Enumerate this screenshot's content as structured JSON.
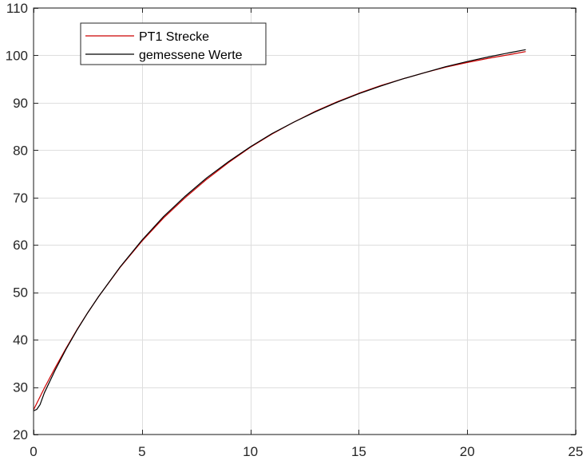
{
  "chart_data": {
    "type": "line",
    "title": "",
    "xlabel": "",
    "ylabel": "",
    "xlim": [
      0,
      25
    ],
    "ylim": [
      20,
      110
    ],
    "xticks": [
      0,
      5,
      10,
      15,
      20,
      25
    ],
    "yticks": [
      20,
      30,
      40,
      50,
      60,
      70,
      80,
      90,
      100,
      110
    ],
    "grid": true,
    "legend_position": "top-left",
    "series": [
      {
        "name": "PT1 Strecke",
        "color": "#cc0000",
        "x": [
          0,
          0.5,
          1,
          1.5,
          2,
          2.5,
          3,
          4,
          5,
          6,
          7,
          8,
          9,
          10,
          11,
          12,
          13,
          14,
          15,
          16,
          17,
          18,
          19,
          20,
          21,
          22,
          22.7
        ],
        "y": [
          25.2,
          29.8,
          34.1,
          38.2,
          42.1,
          45.7,
          49.1,
          55.3,
          60.8,
          65.7,
          70.0,
          73.9,
          77.4,
          80.6,
          83.4,
          85.9,
          88.2,
          90.2,
          92.0,
          93.6,
          95.0,
          96.3,
          97.5,
          98.5,
          99.4,
          100.2,
          100.8
        ]
      },
      {
        "name": "gemessene Werte",
        "color": "#000000",
        "x": [
          0,
          0.15,
          0.3,
          0.5,
          1,
          1.5,
          2,
          2.5,
          3,
          4,
          5,
          6,
          7,
          8,
          9,
          10,
          11,
          12,
          13,
          14,
          15,
          16,
          17,
          18,
          19,
          20,
          21,
          22,
          22.7
        ],
        "y": [
          25.0,
          25.3,
          26.3,
          28.8,
          33.6,
          38.0,
          42.0,
          45.7,
          49.1,
          55.4,
          61.0,
          66.0,
          70.3,
          74.2,
          77.6,
          80.7,
          83.5,
          85.9,
          88.1,
          90.1,
          91.9,
          93.5,
          95.0,
          96.3,
          97.6,
          98.7,
          99.7,
          100.6,
          101.2
        ]
      }
    ]
  }
}
